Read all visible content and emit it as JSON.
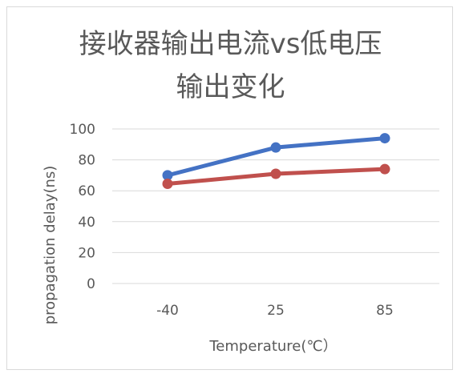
{
  "chart_data": {
    "type": "line",
    "title_line1": "接收器输出电流vs低电压",
    "title_line2": "输出变化",
    "xlabel": "Temperature(℃）",
    "ylabel": "propagation delay(ns)",
    "categories": [
      "-40",
      "25",
      "85"
    ],
    "ylim": [
      0,
      100
    ],
    "yticks": [
      0,
      20,
      40,
      60,
      80,
      100
    ],
    "grid": true,
    "legend": "none",
    "series": [
      {
        "values": [
          70,
          88,
          94
        ],
        "color": "#4472c4"
      },
      {
        "values": [
          64.5,
          71,
          74
        ],
        "color": "#c0504d"
      }
    ]
  }
}
